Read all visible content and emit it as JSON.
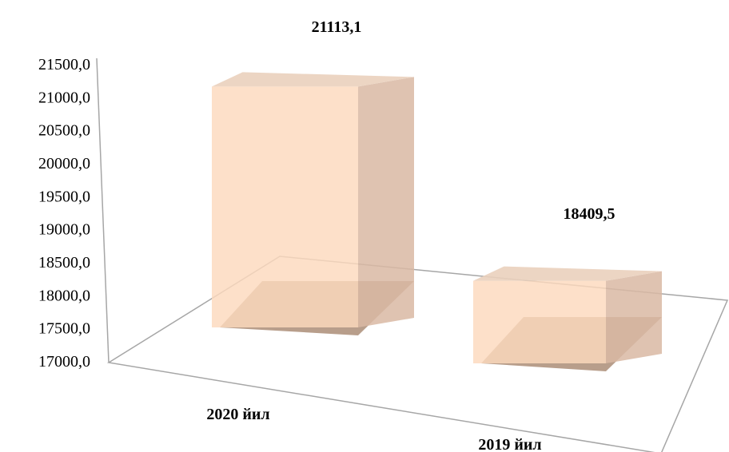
{
  "chart_data": {
    "type": "bar",
    "style": "3d",
    "categories": [
      "2020 йил",
      "2019 йил"
    ],
    "values": [
      21113.1,
      18409.5
    ],
    "data_labels": [
      "21113,1",
      "18409,5"
    ],
    "ylim": [
      17000,
      21500
    ],
    "yticks": [
      17000,
      17500,
      18000,
      18500,
      19000,
      19500,
      20000,
      20500,
      21000,
      21500
    ],
    "ytick_labels": [
      "17000,0",
      "17500,0",
      "18000,0",
      "18500,0",
      "19000,0",
      "19500,0",
      "20000,0",
      "20500,0",
      "21000,0",
      "21500,0"
    ],
    "title": "",
    "xlabel": "",
    "ylabel": "",
    "grid": false,
    "legend": "none",
    "colors": {
      "bar_front": "#fcd9bd",
      "bar_side": "#d9b9a3",
      "bar_top": "#ead0bc",
      "shadow": "#a07e64",
      "axis": "#a6a6a6"
    }
  }
}
